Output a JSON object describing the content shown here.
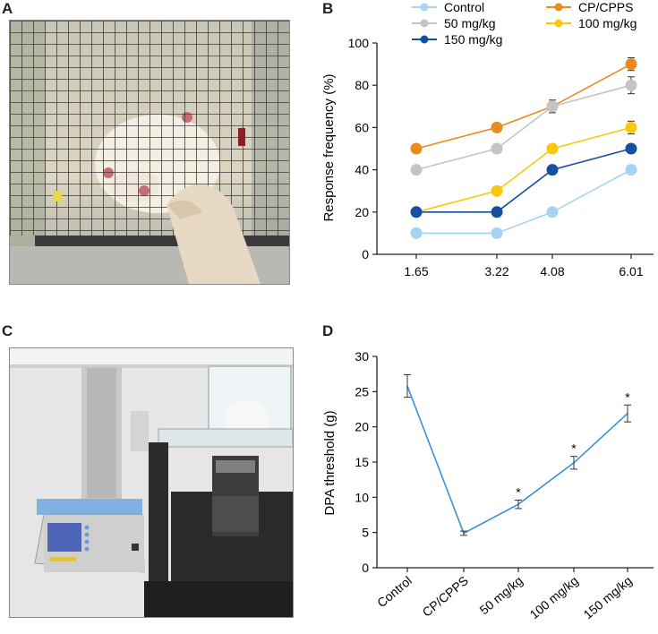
{
  "panels": {
    "a": "A",
    "b": "B",
    "c": "C",
    "d": "D"
  },
  "photos": {
    "a": "photo-rat-on-mesh-cage-von-frey-test",
    "c": "photo-rat-in-chamber-on-analgesiometer"
  },
  "chart_data": [
    {
      "id": "B",
      "type": "line",
      "ylabel": "Response frequency (%)",
      "xlabel": "",
      "categories": [
        "1.65",
        "3.22",
        "4.08",
        "6.01"
      ],
      "ylim": [
        0,
        100
      ],
      "yticks": [
        "0",
        "20",
        "40",
        "60",
        "80",
        "100"
      ],
      "legend": {
        "placement": "top"
      },
      "series": [
        {
          "name": "Control",
          "color": "#a6d3ef",
          "values": [
            10,
            10,
            20,
            40
          ],
          "err": [
            0,
            0,
            0,
            0
          ]
        },
        {
          "name": "CP/CPPS",
          "color": "#ea8a1f",
          "values": [
            50,
            60,
            70,
            90
          ],
          "err": [
            1.5,
            2,
            1,
            3
          ]
        },
        {
          "name": "50 mg/kg",
          "color": "#c4c4c4",
          "values": [
            40,
            50,
            70,
            80
          ],
          "err": [
            0,
            2,
            3,
            4
          ]
        },
        {
          "name": "100 mg/kg",
          "color": "#f8c80a",
          "values": [
            20,
            30,
            50,
            60
          ],
          "err": [
            0,
            0,
            2,
            3
          ]
        },
        {
          "name": "150 mg/kg",
          "color": "#1350a0",
          "values": [
            20,
            20,
            40,
            50
          ],
          "err": [
            0,
            0,
            0,
            2
          ]
        }
      ]
    },
    {
      "id": "D",
      "type": "line",
      "ylabel": "DPA threshold (g)",
      "xlabel": "",
      "categories": [
        "Control",
        "CP/CPPS",
        "50 mg/kg",
        "100 mg/kg",
        "150 mg/kg"
      ],
      "ylim": [
        0,
        30
      ],
      "yticks": [
        "0",
        "5",
        "10",
        "15",
        "20",
        "25",
        "30"
      ],
      "series": [
        {
          "name": "DPA threshold",
          "color": "#3d8fd6",
          "values": [
            25.8,
            4.9,
            9.0,
            14.9,
            21.9
          ],
          "err": [
            1.6,
            0.3,
            0.6,
            0.9,
            1.2
          ],
          "annotations": [
            "",
            "",
            "*",
            "*",
            "*"
          ]
        }
      ]
    }
  ]
}
